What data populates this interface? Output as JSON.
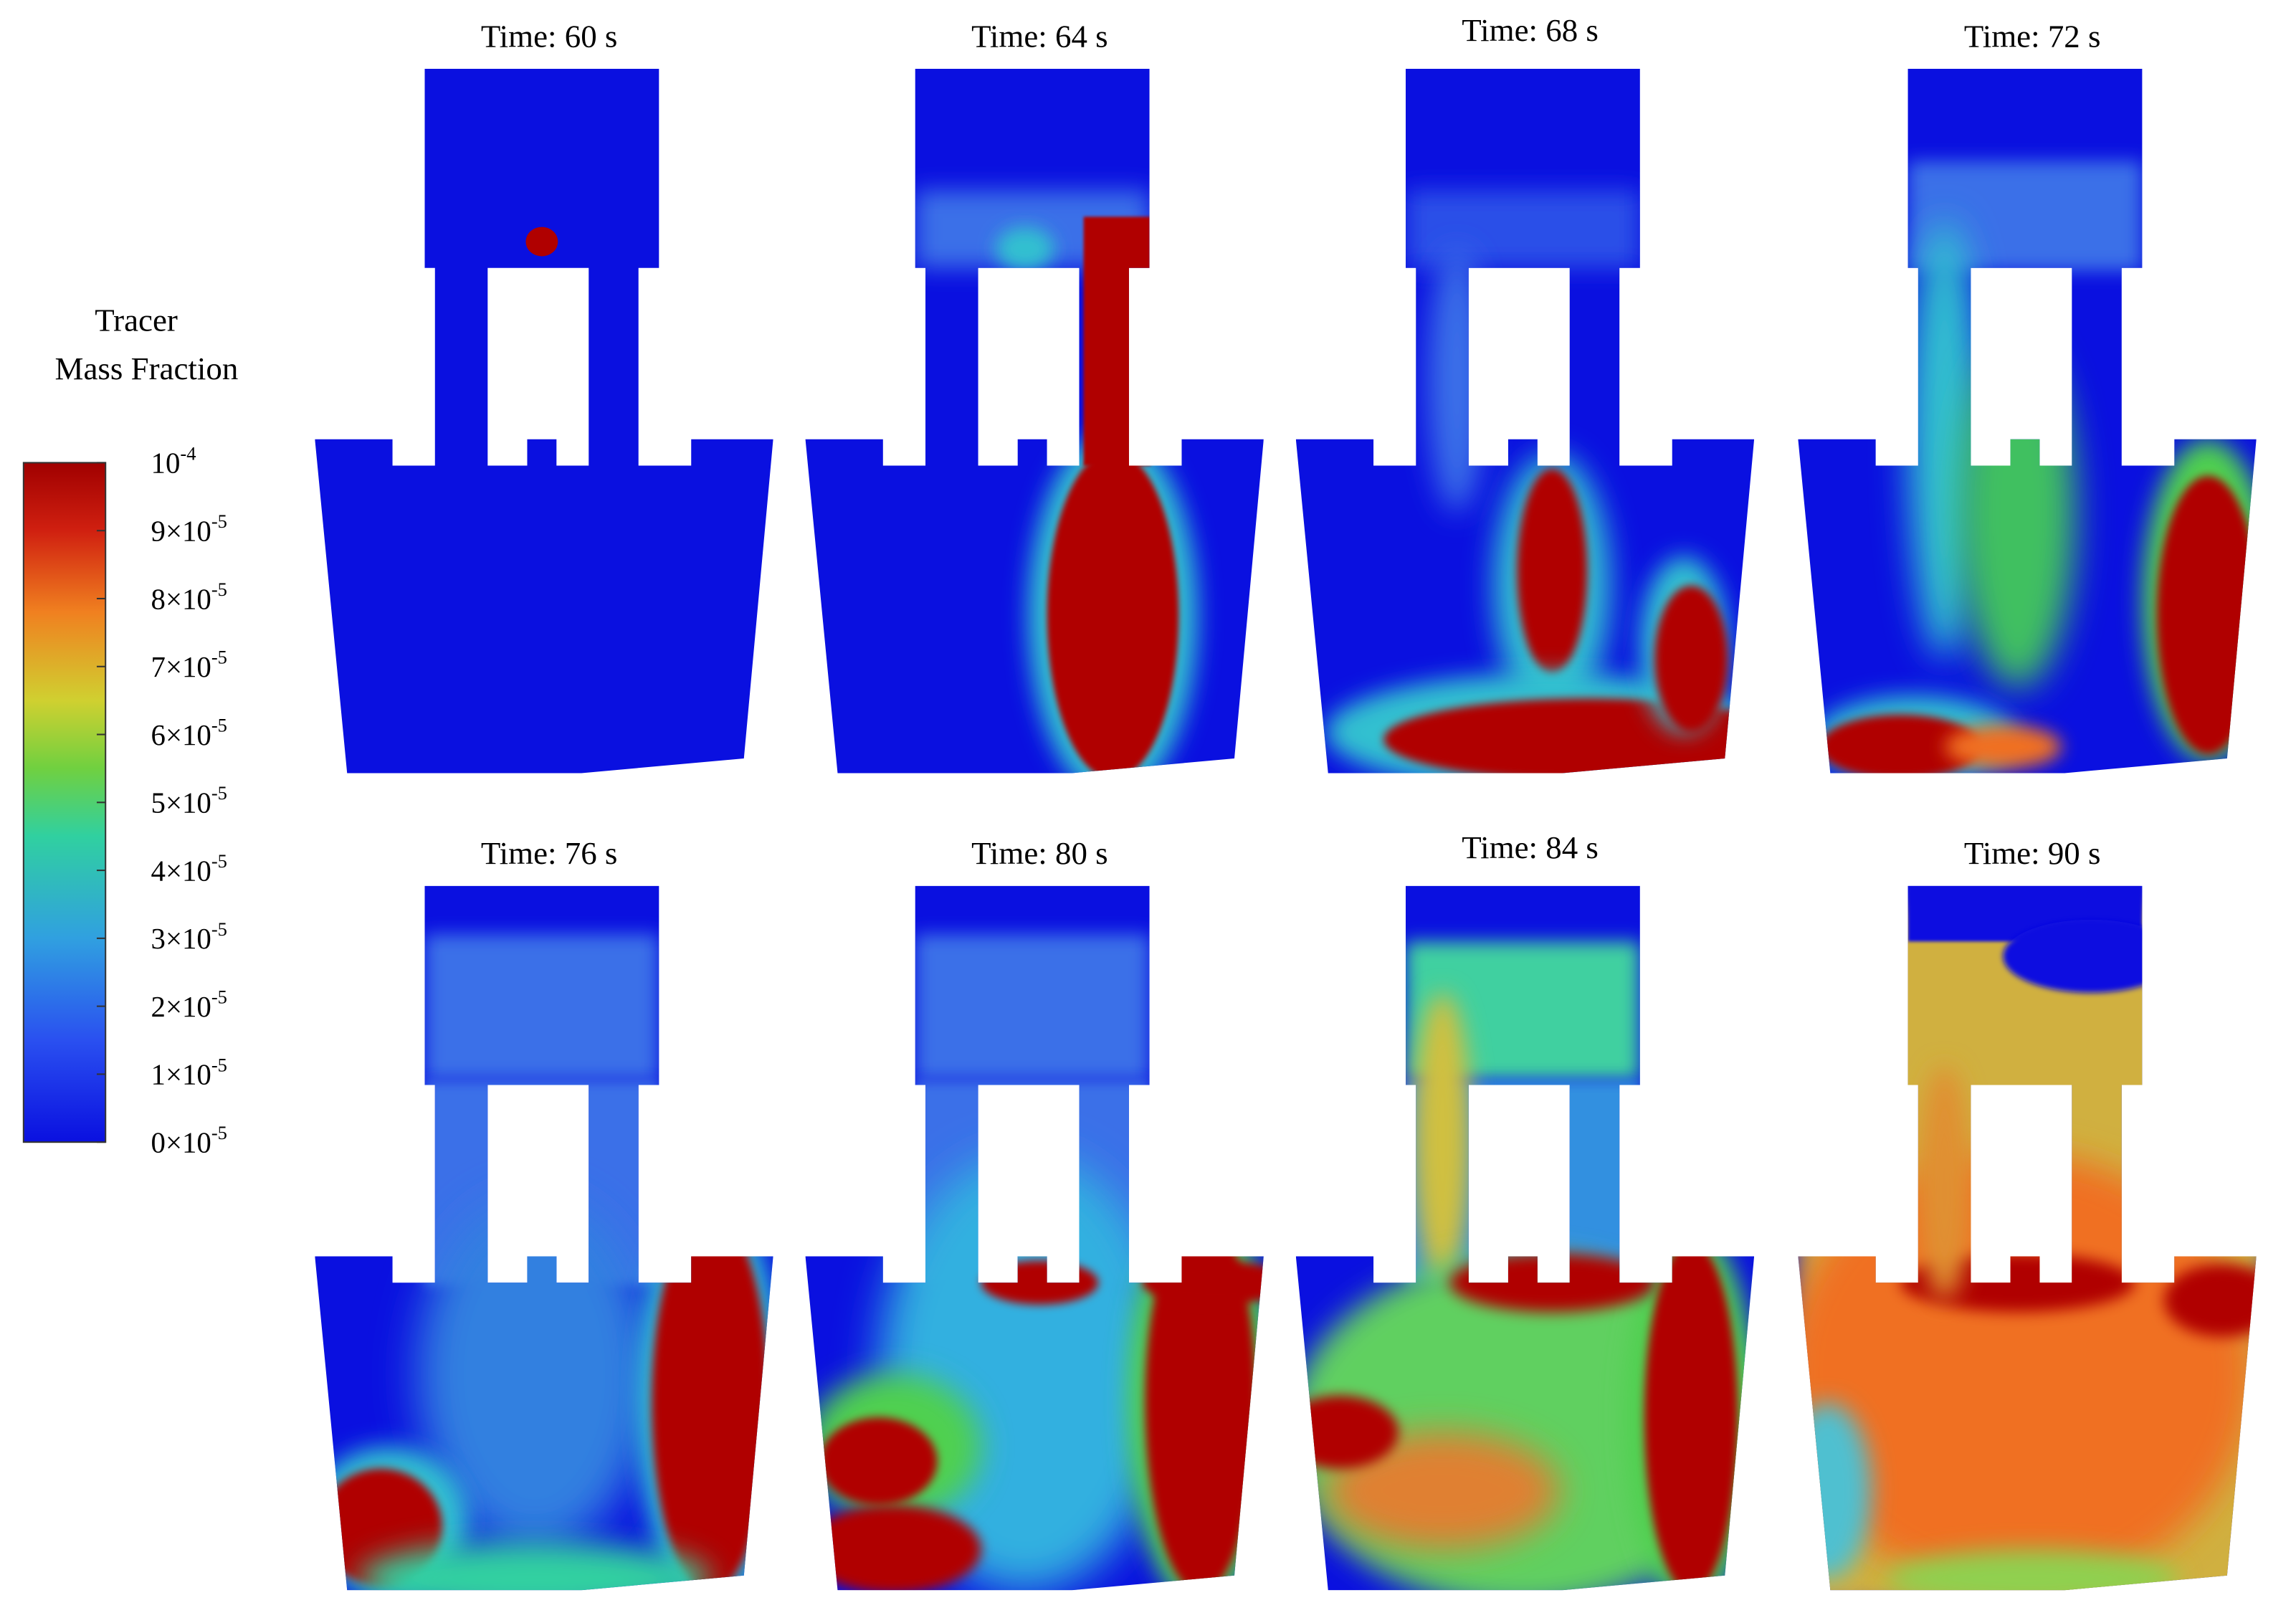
{
  "legend": {
    "title_lines": [
      "Tracer",
      "Mass Fraction"
    ],
    "ticks": [
      {
        "base": "10",
        "exp": "-4"
      },
      {
        "base": "9×10",
        "exp": "-5"
      },
      {
        "base": "8×10",
        "exp": "-5"
      },
      {
        "base": "7×10",
        "exp": "-5"
      },
      {
        "base": "6×10",
        "exp": "-5"
      },
      {
        "base": "5×10",
        "exp": "-5"
      },
      {
        "base": "4×10",
        "exp": "-5"
      },
      {
        "base": "3×10",
        "exp": "-5"
      },
      {
        "base": "2×10",
        "exp": "-5"
      },
      {
        "base": "1×10",
        "exp": "-5"
      },
      {
        "base": "0×10",
        "exp": "-5"
      }
    ]
  },
  "panels": [
    {
      "title": "Time: 60 s"
    },
    {
      "title": "Time: 64 s"
    },
    {
      "title": "Time: 68 s"
    },
    {
      "title": "Time: 72 s"
    },
    {
      "title": "Time: 76 s"
    },
    {
      "title": "Time: 80 s"
    },
    {
      "title": "Time: 84 s"
    },
    {
      "title": "Time: 90 s"
    }
  ]
}
